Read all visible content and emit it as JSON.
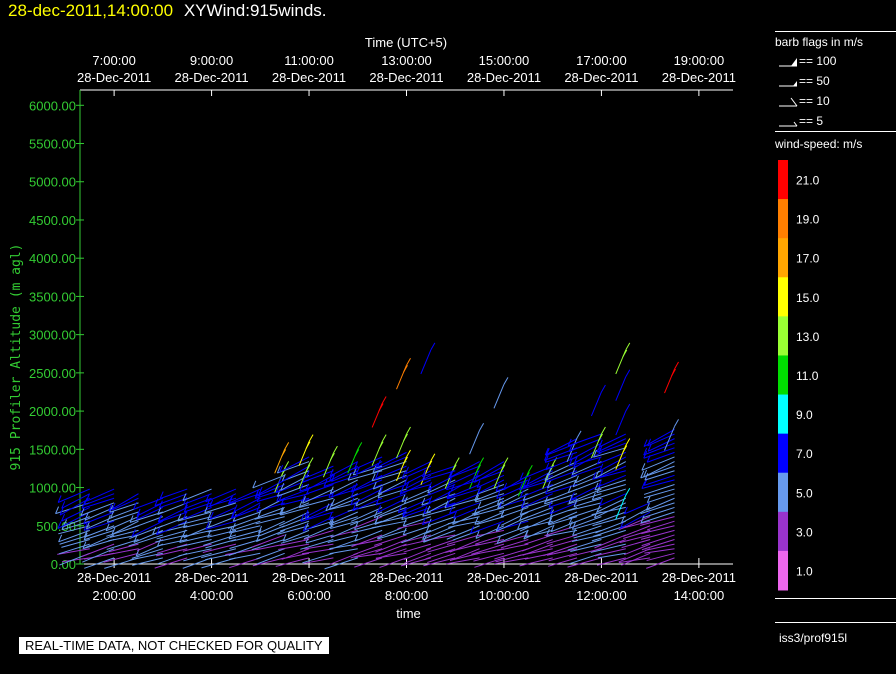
{
  "header": {
    "timestamp": "28-dec-2011,14:00:00",
    "name": "XYWind:915winds."
  },
  "chart_data": {
    "type": "wind-barb-profile",
    "top_axis": {
      "title": "Time (UTC+5)",
      "ticks": [
        {
          "x": 7,
          "time": "7:00:00",
          "date": "28-Dec-2011"
        },
        {
          "x": 9,
          "time": "9:00:00",
          "date": "28-Dec-2011"
        },
        {
          "x": 11,
          "time": "11:00:00",
          "date": "28-Dec-2011"
        },
        {
          "x": 13,
          "time": "13:00:00",
          "date": "28-Dec-2011"
        },
        {
          "x": 15,
          "time": "15:00:00",
          "date": "28-Dec-2011"
        },
        {
          "x": 17,
          "time": "17:00:00",
          "date": "28-Dec-2011"
        },
        {
          "x": 19,
          "time": "19:00:00",
          "date": "28-Dec-2011"
        }
      ]
    },
    "bottom_axis": {
      "title": "time",
      "ticks": [
        {
          "x": 2,
          "date": "28-Dec-2011",
          "time": "2:00:00"
        },
        {
          "x": 4,
          "date": "28-Dec-2011",
          "time": "4:00:00"
        },
        {
          "x": 6,
          "date": "28-Dec-2011",
          "time": "6:00:00"
        },
        {
          "x": 8,
          "date": "28-Dec-2011",
          "time": "8:00:00"
        },
        {
          "x": 10,
          "date": "28-Dec-2011",
          "time": "10:00:00"
        },
        {
          "x": 12,
          "date": "28-Dec-2011",
          "time": "12:00:00"
        },
        {
          "x": 14,
          "date": "28-Dec-2011",
          "time": "14:00:00"
        }
      ],
      "xlim": [
        1.3,
        14.7
      ]
    },
    "y_axis": {
      "title": "915 Profiler Altitude (m agl)",
      "ticks": [
        "0.00",
        "500.00",
        "1000.00",
        "1500.00",
        "2000.00",
        "2500.00",
        "3000.00",
        "3500.00",
        "4000.00",
        "4500.00",
        "5000.00",
        "5500.00",
        "6000.00"
      ],
      "ylim": [
        0,
        6200
      ],
      "color": "#33cc33"
    },
    "legend": {
      "title": "barb flags in m/s",
      "items": [
        "== 100",
        "== 50",
        "== 10",
        "== 5"
      ]
    },
    "colorbar": {
      "title": "wind-speed: m/s",
      "labels": [
        "21.0",
        "19.0",
        "17.0",
        "15.0",
        "13.0",
        "11.0",
        "9.0",
        "7.0",
        "5.0",
        "3.0",
        "1.0"
      ],
      "colors": [
        "#ff0000",
        "#ff7f00",
        "#ffa500",
        "#ffff00",
        "#99ff33",
        "#00dd00",
        "#00ffff",
        "#0000ff",
        "#6699ee",
        "#9933cc",
        "#ee66ee"
      ]
    },
    "profiles": [
      {
        "t": 1.5,
        "h_max": 1000,
        "tops": []
      },
      {
        "t": 2.0,
        "h_max": 1000,
        "tops": []
      },
      {
        "t": 2.5,
        "h_max": 950,
        "tops": []
      },
      {
        "t": 3.0,
        "h_max": 900,
        "tops": []
      },
      {
        "t": 3.5,
        "h_max": 1000,
        "tops": []
      },
      {
        "t": 4.0,
        "h_max": 1000,
        "tops": []
      },
      {
        "t": 4.5,
        "h_max": 1000,
        "tops": []
      },
      {
        "t": 5.0,
        "h_max": 1000,
        "tops": []
      },
      {
        "t": 5.5,
        "h_max": 1200,
        "tops": [
          {
            "h": 1500,
            "ws": 17
          },
          {
            "h": 1250,
            "ws": 13
          }
        ]
      },
      {
        "t": 6.0,
        "h_max": 1450,
        "tops": [
          {
            "h": 1600,
            "ws": 15
          },
          {
            "h": 1300,
            "ws": 13
          }
        ]
      },
      {
        "t": 6.5,
        "h_max": 1300,
        "tops": [
          {
            "h": 1450,
            "ws": 13
          }
        ]
      },
      {
        "t": 7.0,
        "h_max": 1350,
        "tops": [
          {
            "h": 1500,
            "ws": 11
          }
        ]
      },
      {
        "t": 7.5,
        "h_max": 1450,
        "tops": [
          {
            "h": 2100,
            "ws": 21
          },
          {
            "h": 1600,
            "ws": 13
          }
        ]
      },
      {
        "t": 8.0,
        "h_max": 1500,
        "tops": [
          {
            "h": 2600,
            "ws": 19
          },
          {
            "h": 1700,
            "ws": 13
          },
          {
            "h": 1400,
            "ws": 15
          }
        ]
      },
      {
        "t": 8.5,
        "h_max": 1350,
        "tops": [
          {
            "h": 2800,
            "ws": 7
          },
          {
            "h": 1350,
            "ws": 15
          }
        ]
      },
      {
        "t": 9.0,
        "h_max": 1300,
        "tops": [
          {
            "h": 1300,
            "ws": 13
          }
        ]
      },
      {
        "t": 9.5,
        "h_max": 1350,
        "tops": [
          {
            "h": 1750,
            "ws": 5
          },
          {
            "h": 1300,
            "ws": 11
          }
        ]
      },
      {
        "t": 10.0,
        "h_max": 1350,
        "tops": [
          {
            "h": 2350,
            "ws": 5
          },
          {
            "h": 1300,
            "ws": 13
          }
        ]
      },
      {
        "t": 10.5,
        "h_max": 1200,
        "tops": [
          {
            "h": 1200,
            "ws": 11
          }
        ]
      },
      {
        "t": 11.0,
        "h_max": 1300,
        "tops": [
          {
            "h": 1300,
            "ws": 13
          }
        ]
      },
      {
        "t": 11.5,
        "h_max": 1650,
        "tops": [
          {
            "h": 1650,
            "ws": 5
          }
        ]
      },
      {
        "t": 12.0,
        "h_max": 1700,
        "tops": [
          {
            "h": 2250,
            "ws": 7
          },
          {
            "h": 1700,
            "ws": 13
          }
        ]
      },
      {
        "t": 12.5,
        "h_max": 1700,
        "tops": [
          {
            "h": 2800,
            "ws": 13
          },
          {
            "h": 2450,
            "ws": 7
          },
          {
            "h": 2000,
            "ws": 7
          },
          {
            "h": 1550,
            "ws": 15
          },
          {
            "h": 900,
            "ws": 9
          }
        ]
      },
      {
        "t": 13.0,
        "h_max": 850,
        "tops": []
      },
      {
        "t": 13.5,
        "h_max": 1800,
        "tops": [
          {
            "h": 2550,
            "ws": 21
          },
          {
            "h": 1800,
            "ws": 5
          }
        ]
      }
    ]
  },
  "footer": {
    "qc_notice": "REAL-TIME DATA, NOT CHECKED FOR QUALITY",
    "station": "iss3/prof915l"
  }
}
